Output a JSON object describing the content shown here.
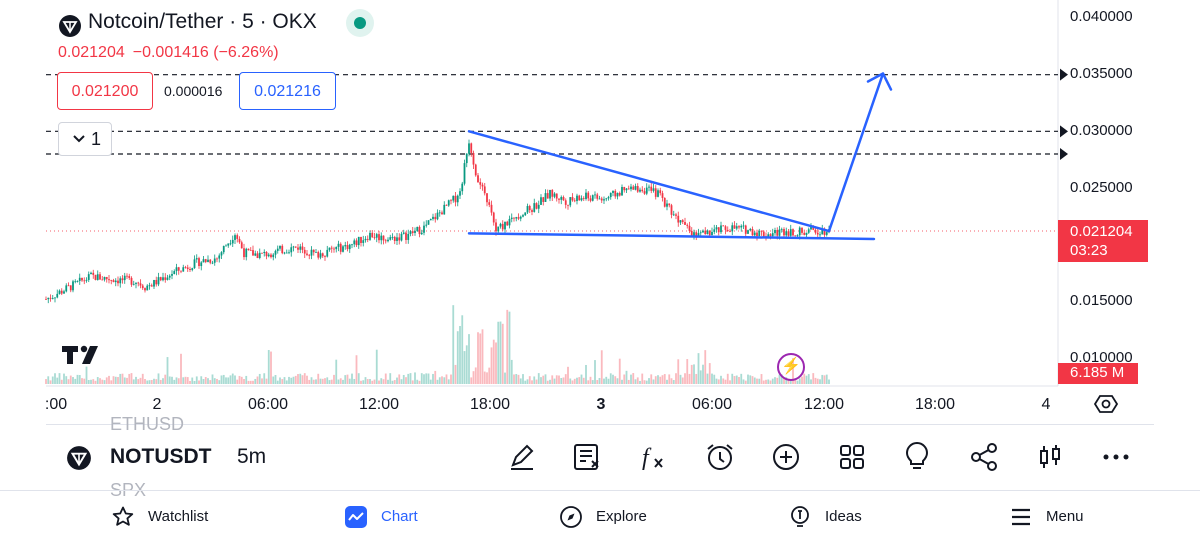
{
  "header": {
    "title": "Notcoin/Tether · 5 · OKX",
    "ohlc_price": "0.021204",
    "ohlc_change": "−0.001416 (−6.26%)"
  },
  "trade": {
    "sell_price": "0.021200",
    "spread": "0.000016",
    "buy_price": "0.021216"
  },
  "indicators_toggle": {
    "count": "1"
  },
  "chart_data": {
    "type": "candlestick",
    "price_axis": {
      "ticks": [
        "0.040000",
        "0.035000",
        "0.030000",
        "0.025000",
        "0.015000",
        "0.010000"
      ],
      "range": [
        0.0085,
        0.0412
      ]
    },
    "time_axis": {
      "ticks": [
        ":00",
        "2",
        "06:00",
        "12:00",
        "18:00",
        "3",
        "06:00",
        "12:00",
        "18:00",
        "4"
      ],
      "bold_ticks": [
        "3"
      ]
    },
    "last_price": "0.021204",
    "countdown": "03:23",
    "volume_label": "6.185 M",
    "horizontal_lines": [
      0.035,
      0.03,
      0.028
    ],
    "price_path": [
      [
        0,
        0.0152
      ],
      [
        2,
        0.016
      ],
      [
        5,
        0.0172
      ],
      [
        8,
        0.0169
      ],
      [
        10,
        0.0168
      ],
      [
        11,
        0.0163
      ],
      [
        12,
        0.0166
      ],
      [
        14,
        0.0175
      ],
      [
        17,
        0.0185
      ],
      [
        19,
        0.0188
      ],
      [
        20,
        0.02
      ],
      [
        21,
        0.021
      ],
      [
        22,
        0.0193
      ],
      [
        24,
        0.0191
      ],
      [
        26,
        0.0195
      ],
      [
        28,
        0.0198
      ],
      [
        30,
        0.0191
      ],
      [
        32,
        0.0196
      ],
      [
        34,
        0.02
      ],
      [
        36,
        0.0209
      ],
      [
        38,
        0.0205
      ],
      [
        40,
        0.0208
      ],
      [
        42,
        0.0215
      ],
      [
        44,
        0.023
      ],
      [
        46,
        0.0245
      ],
      [
        47,
        0.0292
      ],
      [
        48,
        0.0255
      ],
      [
        49,
        0.024
      ],
      [
        50,
        0.0212
      ],
      [
        52,
        0.0225
      ],
      [
        54,
        0.0232
      ],
      [
        56,
        0.0245
      ],
      [
        58,
        0.0238
      ],
      [
        60,
        0.0242
      ],
      [
        62,
        0.024
      ],
      [
        64,
        0.0247
      ],
      [
        66,
        0.025
      ],
      [
        68,
        0.0245
      ],
      [
        70,
        0.0225
      ],
      [
        72,
        0.0208
      ],
      [
        74,
        0.0211
      ],
      [
        76,
        0.0215
      ],
      [
        78,
        0.0213
      ],
      [
        80,
        0.0209
      ],
      [
        82,
        0.0212
      ],
      [
        84,
        0.0211
      ],
      [
        86,
        0.0213
      ],
      [
        87,
        0.0212
      ]
    ],
    "triangle": {
      "upper": [
        [
          47,
          0.03
        ],
        [
          87,
          0.0212
        ]
      ],
      "lower": [
        [
          47,
          0.021
        ],
        [
          92,
          0.0205
        ]
      ],
      "arrow": [
        [
          87,
          0.0212
        ],
        [
          93,
          0.0351
        ]
      ]
    }
  },
  "toolbar": {
    "ghost_above": "ETHUSD",
    "symbol": "NOTUSDT",
    "interval": "5m",
    "ghost_below": "SPX"
  },
  "bottom_nav": {
    "watchlist": "Watchlist",
    "chart": "Chart",
    "explore": "Explore",
    "ideas": "Ideas",
    "menu": "Menu"
  },
  "colors": {
    "up": "#089981",
    "down": "#f23645",
    "accent": "#2962ff",
    "drawing": "#2962ff"
  }
}
